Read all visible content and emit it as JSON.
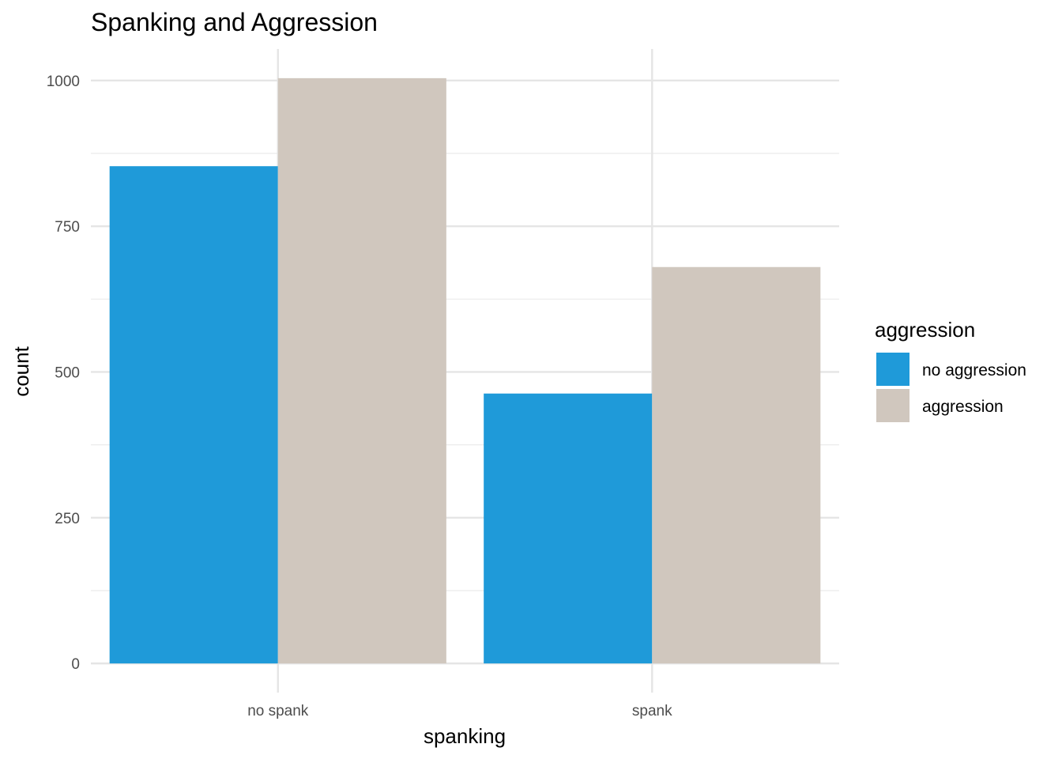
{
  "chart_data": {
    "type": "bar",
    "title": "Spanking and Aggression",
    "xlabel": "spanking",
    "ylabel": "count",
    "categories": [
      "no spank",
      "spank"
    ],
    "series": [
      {
        "name": "no aggression",
        "values": [
          853,
          463
        ],
        "color": "#1F9AD9"
      },
      {
        "name": "aggression",
        "values": [
          1004,
          680
        ],
        "color": "#D0C7BE"
      }
    ],
    "ylim": [
      -50,
      1054
    ],
    "yticks": [
      0,
      250,
      500,
      750,
      1000
    ],
    "grid": true,
    "legend": {
      "title": "aggression",
      "position": "right"
    }
  }
}
